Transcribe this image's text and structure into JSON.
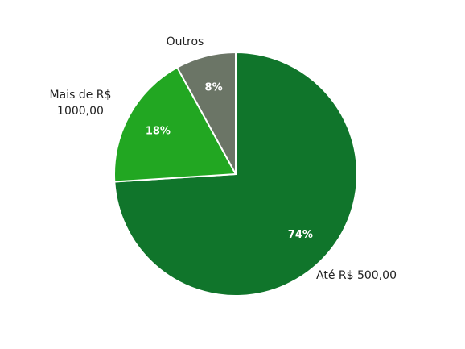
{
  "chart_data": {
    "type": "pie",
    "categories": [
      "Até R$ 500,00",
      "Mais de R$ 1000,00",
      "Outros"
    ],
    "values": [
      74,
      18,
      8
    ],
    "value_labels": [
      "74%",
      "18%",
      "8%"
    ],
    "colors": [
      "#10752b",
      "#22a722",
      "#6b7566"
    ]
  }
}
